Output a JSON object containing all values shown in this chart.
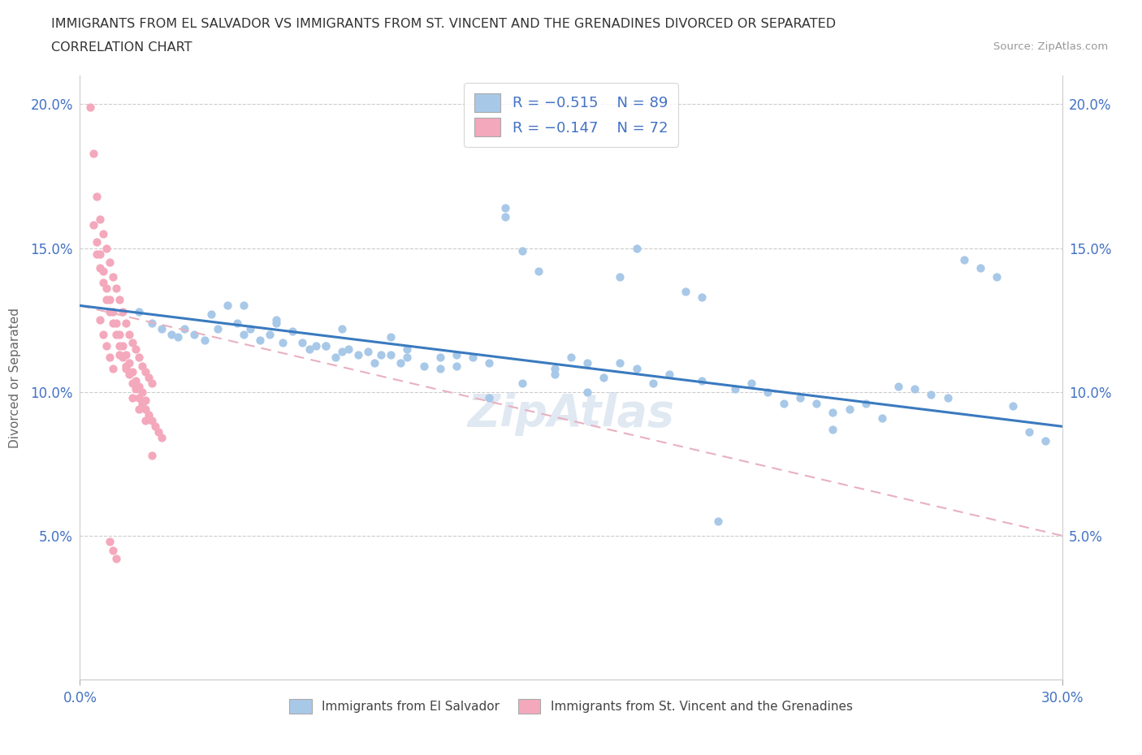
{
  "title_line1": "IMMIGRANTS FROM EL SALVADOR VS IMMIGRANTS FROM ST. VINCENT AND THE GRENADINES DIVORCED OR SEPARATED",
  "title_line2": "CORRELATION CHART",
  "source_text": "Source: ZipAtlas.com",
  "ylabel": "Divorced or Separated",
  "xmin": 0.0,
  "xmax": 0.3,
  "ymin": 0.0,
  "ymax": 0.21,
  "ytick_values": [
    0.0,
    0.05,
    0.1,
    0.15,
    0.2
  ],
  "ytick_labels": [
    "",
    "5.0%",
    "10.0%",
    "15.0%",
    "20.0%"
  ],
  "xtick_values": [
    0.0,
    0.3
  ],
  "xtick_labels": [
    "0.0%",
    "30.0%"
  ],
  "color_blue": "#a8c8e8",
  "color_pink": "#f4a8bc",
  "trendline_blue": "#3a7abf",
  "trendline_pink": "#e8b8c8",
  "legend_label1": "Immigrants from El Salvador",
  "legend_label2": "Immigrants from St. Vincent and the Grenadines",
  "watermark": "ZipAtlas",
  "blue_scatter_x": [
    0.018,
    0.022,
    0.025,
    0.028,
    0.03,
    0.032,
    0.035,
    0.038,
    0.04,
    0.042,
    0.045,
    0.048,
    0.05,
    0.052,
    0.055,
    0.058,
    0.06,
    0.062,
    0.065,
    0.068,
    0.07,
    0.072,
    0.075,
    0.078,
    0.08,
    0.082,
    0.085,
    0.088,
    0.09,
    0.092,
    0.095,
    0.098,
    0.1,
    0.105,
    0.11,
    0.115,
    0.12,
    0.125,
    0.13,
    0.135,
    0.14,
    0.145,
    0.15,
    0.155,
    0.16,
    0.165,
    0.17,
    0.175,
    0.18,
    0.185,
    0.19,
    0.195,
    0.2,
    0.205,
    0.21,
    0.215,
    0.22,
    0.225,
    0.23,
    0.235,
    0.24,
    0.25,
    0.255,
    0.265,
    0.27,
    0.275,
    0.28,
    0.285,
    0.29,
    0.295,
    0.13,
    0.155,
    0.165,
    0.17,
    0.115,
    0.135,
    0.145,
    0.1,
    0.19,
    0.245,
    0.26,
    0.23,
    0.11,
    0.125,
    0.08,
    0.095,
    0.075,
    0.06,
    0.05
  ],
  "blue_scatter_y": [
    0.128,
    0.124,
    0.122,
    0.12,
    0.119,
    0.122,
    0.12,
    0.118,
    0.127,
    0.122,
    0.13,
    0.124,
    0.12,
    0.122,
    0.118,
    0.12,
    0.124,
    0.117,
    0.121,
    0.117,
    0.115,
    0.116,
    0.116,
    0.112,
    0.114,
    0.115,
    0.113,
    0.114,
    0.11,
    0.113,
    0.113,
    0.11,
    0.112,
    0.109,
    0.108,
    0.109,
    0.112,
    0.11,
    0.164,
    0.149,
    0.142,
    0.108,
    0.112,
    0.11,
    0.105,
    0.11,
    0.108,
    0.103,
    0.106,
    0.135,
    0.104,
    0.055,
    0.101,
    0.103,
    0.1,
    0.096,
    0.098,
    0.096,
    0.093,
    0.094,
    0.096,
    0.102,
    0.101,
    0.098,
    0.146,
    0.143,
    0.14,
    0.095,
    0.086,
    0.083,
    0.161,
    0.1,
    0.14,
    0.15,
    0.113,
    0.103,
    0.106,
    0.115,
    0.133,
    0.091,
    0.099,
    0.087,
    0.112,
    0.098,
    0.122,
    0.119,
    0.116,
    0.125,
    0.13
  ],
  "pink_scatter_x": [
    0.003,
    0.004,
    0.005,
    0.006,
    0.007,
    0.008,
    0.009,
    0.01,
    0.011,
    0.012,
    0.013,
    0.014,
    0.015,
    0.016,
    0.017,
    0.018,
    0.019,
    0.02,
    0.021,
    0.022,
    0.004,
    0.005,
    0.006,
    0.007,
    0.008,
    0.009,
    0.01,
    0.011,
    0.012,
    0.013,
    0.014,
    0.015,
    0.016,
    0.017,
    0.018,
    0.019,
    0.02,
    0.005,
    0.006,
    0.007,
    0.008,
    0.009,
    0.01,
    0.011,
    0.012,
    0.013,
    0.014,
    0.015,
    0.016,
    0.017,
    0.018,
    0.019,
    0.02,
    0.021,
    0.022,
    0.023,
    0.024,
    0.025,
    0.006,
    0.007,
    0.008,
    0.009,
    0.01,
    0.016,
    0.018,
    0.02,
    0.012,
    0.014,
    0.009,
    0.01,
    0.011,
    0.022
  ],
  "pink_scatter_y": [
    0.199,
    0.183,
    0.168,
    0.16,
    0.155,
    0.15,
    0.145,
    0.14,
    0.136,
    0.132,
    0.128,
    0.124,
    0.12,
    0.117,
    0.115,
    0.112,
    0.109,
    0.107,
    0.105,
    0.103,
    0.158,
    0.152,
    0.148,
    0.142,
    0.136,
    0.132,
    0.128,
    0.124,
    0.12,
    0.116,
    0.113,
    0.11,
    0.107,
    0.104,
    0.102,
    0.1,
    0.097,
    0.148,
    0.143,
    0.138,
    0.132,
    0.128,
    0.124,
    0.12,
    0.116,
    0.112,
    0.109,
    0.106,
    0.103,
    0.101,
    0.098,
    0.096,
    0.094,
    0.092,
    0.09,
    0.088,
    0.086,
    0.084,
    0.125,
    0.12,
    0.116,
    0.112,
    0.108,
    0.098,
    0.094,
    0.09,
    0.113,
    0.108,
    0.048,
    0.045,
    0.042,
    0.078
  ],
  "blue_trend_x0": 0.0,
  "blue_trend_x1": 0.3,
  "blue_trend_y0": 0.13,
  "blue_trend_y1": 0.088,
  "pink_trend_x0": 0.0,
  "pink_trend_x1": 0.3,
  "pink_trend_y0": 0.13,
  "pink_trend_y1": 0.05
}
